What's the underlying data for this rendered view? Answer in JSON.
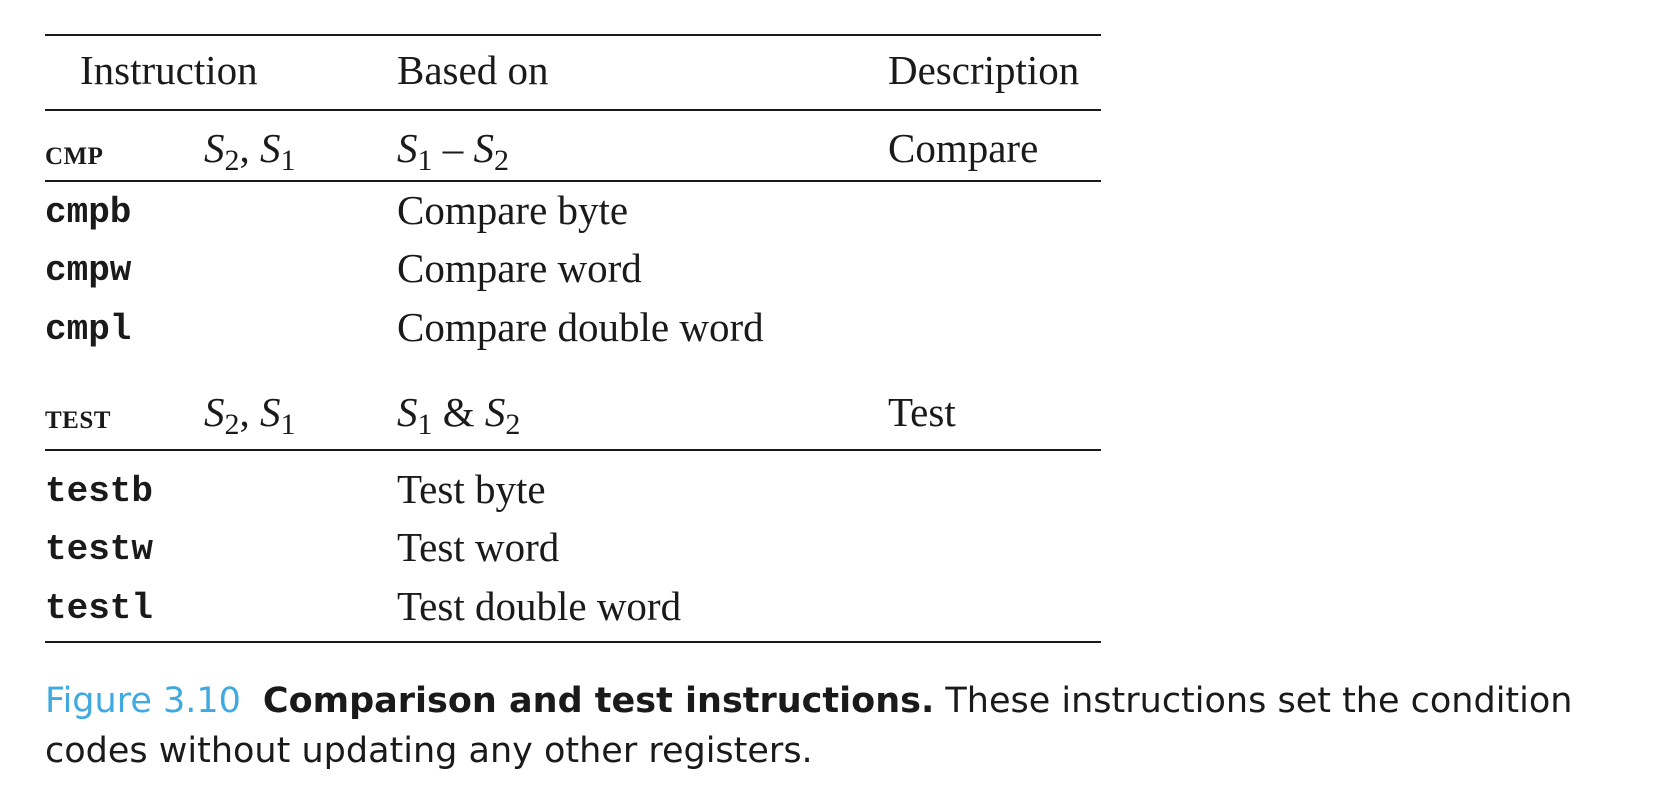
{
  "table": {
    "headers": {
      "instruction": "Instruction",
      "based_on": "Based on",
      "description": "Description"
    },
    "groups": [
      {
        "mnemonic": "CMP",
        "operands": {
          "a": "S",
          "a_sub": "2",
          "sep": ",",
          "b": "S",
          "b_sub": "1"
        },
        "based_on": {
          "a": "S",
          "a_sub": "1",
          "op": "–",
          "b": "S",
          "b_sub": "2"
        },
        "description": "Compare",
        "rows": [
          {
            "code": "cmpb",
            "based_on": "Compare byte"
          },
          {
            "code": "cmpw",
            "based_on": "Compare word"
          },
          {
            "code": "cmpl",
            "based_on": "Compare double word"
          }
        ]
      },
      {
        "mnemonic": "TEST",
        "operands": {
          "a": "S",
          "a_sub": "2",
          "sep": ",",
          "b": "S",
          "b_sub": "1"
        },
        "based_on": {
          "a": "S",
          "a_sub": "1",
          "op": "&",
          "b": "S",
          "b_sub": "2"
        },
        "description": "Test",
        "rows": [
          {
            "code": "testb",
            "based_on": "Test byte"
          },
          {
            "code": "testw",
            "based_on": "Test word"
          },
          {
            "code": "testl",
            "based_on": "Test double word"
          }
        ]
      }
    ]
  },
  "caption": {
    "label": "Figure 3.10",
    "title": "Comparison and test instructions.",
    "text": "These instructions set the condition codes without updating any other registers."
  }
}
